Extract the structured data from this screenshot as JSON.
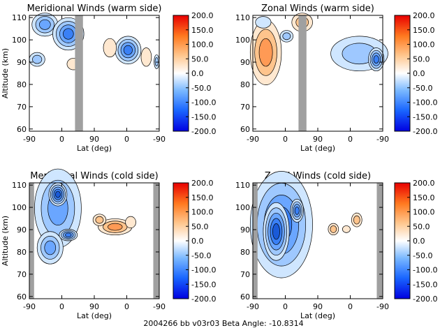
{
  "chart_data": [
    {
      "type": "heatmap",
      "title": "Meridional Winds (warm side)",
      "xlabel": "Lat (deg)",
      "ylabel": "Altitude (km)",
      "x_ticks": [
        "-90",
        "0",
        "90",
        "0",
        "-90"
      ],
      "y_ticks": [
        60,
        70,
        80,
        90,
        100,
        110
      ],
      "ylim": [
        59,
        111
      ],
      "no_data_band_deg_from_left": [
        [
          115,
          135
        ]
      ],
      "colorbar_ticks": [
        "200.0",
        "150.0",
        "100.0",
        "50.0",
        "0.0",
        "-50.0",
        "-100.0",
        "-150.0",
        "-200.0"
      ],
      "colorbar_range": [
        -200,
        200
      ]
    },
    {
      "type": "heatmap",
      "title": "Zonal Winds (warm side)",
      "xlabel": "Lat (deg)",
      "ylabel": "",
      "x_ticks": [
        "-90",
        "0",
        "90",
        "0",
        "-90"
      ],
      "y_ticks": [
        60,
        70,
        80,
        90,
        100,
        110
      ],
      "ylim": [
        59,
        111
      ],
      "no_data_band_deg_from_left": [
        [
          115,
          135
        ]
      ],
      "colorbar_ticks": [
        "200.0",
        "150.0",
        "100.0",
        "50.0",
        "0.0",
        "-50.0",
        "-100.0",
        "-150.0",
        "-200.0"
      ],
      "colorbar_range": [
        -200,
        200
      ]
    },
    {
      "type": "heatmap",
      "title": "Meridional Winds (cold side)",
      "xlabel": "Lat (deg)",
      "ylabel": "Altitude (km)",
      "x_ticks": [
        "-90",
        "0",
        "90",
        "0",
        "-90"
      ],
      "y_ticks": [
        60,
        70,
        80,
        90,
        100,
        110
      ],
      "ylim": [
        59,
        111
      ],
      "no_data_band_deg_from_left": [
        [
          0,
          12
        ],
        [
          312,
          327
        ]
      ],
      "colorbar_ticks": [
        "200.0",
        "150.0",
        "100.0",
        "50.0",
        "0.0",
        "-50.0",
        "-100.0",
        "-150.0",
        "-200.0"
      ],
      "colorbar_range": [
        -200,
        200
      ]
    },
    {
      "type": "heatmap",
      "title": "Zonal Winds (cold side)",
      "xlabel": "Lat (deg)",
      "ylabel": "",
      "x_ticks": [
        "-90",
        "0",
        "90",
        "0",
        "-90"
      ],
      "y_ticks": [
        60,
        70,
        80,
        90,
        100,
        110
      ],
      "ylim": [
        59,
        111
      ],
      "no_data_band_deg_from_left": [
        [
          0,
          12
        ],
        [
          312,
          327
        ]
      ],
      "colorbar_ticks": [
        "200.0",
        "150.0",
        "100.0",
        "50.0",
        "0.0",
        "-50.0",
        "-100.0",
        "-150.0",
        "-200.0"
      ],
      "colorbar_range": [
        -200,
        200
      ]
    }
  ],
  "footer": "2004266 bb v03r03   Beta Angle: -10.8314",
  "colors": {
    "positive": "#ff2a00",
    "zero": "#ffffff",
    "negative": "#0000ff",
    "no_data": "#a0a0a0"
  }
}
